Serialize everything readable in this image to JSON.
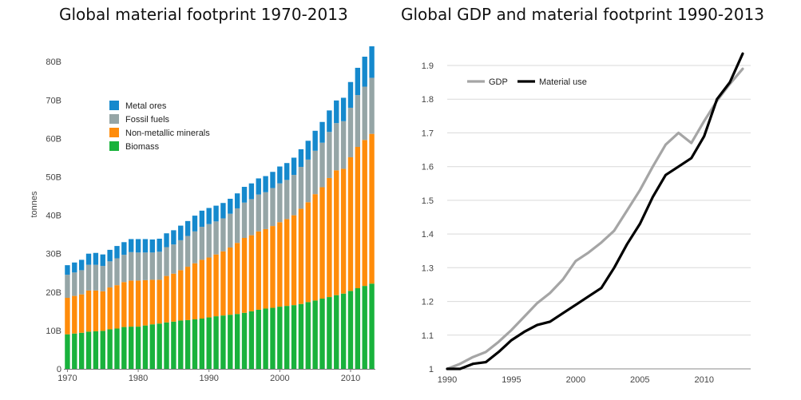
{
  "chart_data": [
    {
      "type": "bar",
      "stacked": true,
      "title": "Global material footprint 1970-2013",
      "ylabel": "tonnes",
      "xlabel": "",
      "ylim": [
        0,
        84
      ],
      "y_ticks": [
        0,
        10,
        20,
        30,
        40,
        50,
        60,
        70,
        80
      ],
      "y_tick_labels": [
        "0",
        "10B",
        "20B",
        "30B",
        "40B",
        "50B",
        "60B",
        "70B",
        "80B"
      ],
      "x_ticks": [
        1970,
        1980,
        1990,
        2000,
        2010
      ],
      "x_tick_labels": [
        "1970",
        "1980",
        "1990",
        "2000",
        "2010"
      ],
      "legend_placement": "top-left",
      "categories": [
        1970,
        1971,
        1972,
        1973,
        1974,
        1975,
        1976,
        1977,
        1978,
        1979,
        1980,
        1981,
        1982,
        1983,
        1984,
        1985,
        1986,
        1987,
        1988,
        1989,
        1990,
        1991,
        1992,
        1993,
        1994,
        1995,
        1996,
        1997,
        1998,
        1999,
        2000,
        2001,
        2002,
        2003,
        2004,
        2005,
        2006,
        2007,
        2008,
        2009,
        2010,
        2011,
        2012,
        2013
      ],
      "series": [
        {
          "name": "Biomass",
          "color": "#19b23c",
          "values": [
            9.0,
            9.2,
            9.4,
            9.7,
            9.8,
            9.9,
            10.3,
            10.5,
            10.9,
            11.0,
            11.0,
            11.3,
            11.6,
            11.8,
            12.1,
            12.3,
            12.6,
            12.7,
            12.9,
            13.1,
            13.4,
            13.7,
            13.9,
            14.1,
            14.3,
            14.6,
            15.0,
            15.4,
            15.7,
            15.9,
            16.2,
            16.4,
            16.6,
            16.9,
            17.4,
            17.8,
            18.3,
            18.7,
            19.2,
            19.6,
            20.3,
            21.0,
            21.6,
            22.2
          ]
        },
        {
          "name": "Non-metallic minerals",
          "color": "#ff8c0a",
          "values": [
            9.5,
            9.8,
            10.0,
            10.7,
            10.6,
            10.3,
            10.9,
            11.3,
            11.7,
            12.0,
            12.0,
            11.8,
            11.6,
            11.4,
            12.1,
            12.5,
            13.1,
            13.9,
            14.6,
            15.3,
            15.6,
            16.1,
            16.7,
            17.5,
            18.5,
            19.5,
            19.8,
            20.4,
            20.7,
            21.3,
            22.0,
            22.6,
            23.4,
            24.8,
            26.0,
            27.7,
            29.0,
            31.0,
            32.5,
            32.5,
            34.8,
            36.8,
            38.0,
            39.0
          ]
        },
        {
          "name": "Fossil fuels",
          "color": "#95a5a6",
          "values": [
            6.0,
            6.1,
            6.3,
            6.7,
            6.7,
            6.6,
            6.8,
            7.0,
            7.1,
            7.4,
            7.3,
            7.2,
            7.1,
            7.3,
            7.5,
            7.6,
            7.8,
            8.0,
            8.3,
            8.6,
            8.7,
            8.6,
            8.6,
            8.8,
            9.0,
            9.2,
            9.4,
            9.6,
            9.6,
            9.9,
            10.1,
            10.2,
            10.5,
            10.9,
            11.1,
            11.3,
            11.6,
            12.0,
            12.3,
            12.4,
            12.9,
            13.5,
            13.9,
            14.6
          ]
        },
        {
          "name": "Metal ores",
          "color": "#1589cd",
          "values": [
            2.5,
            2.6,
            2.7,
            2.9,
            3.1,
            3.0,
            3.0,
            3.2,
            3.3,
            3.4,
            3.5,
            3.5,
            3.4,
            3.4,
            3.6,
            3.7,
            3.8,
            3.9,
            4.1,
            4.2,
            4.2,
            4.1,
            4.0,
            3.9,
            3.9,
            4.1,
            4.1,
            4.2,
            4.2,
            4.2,
            4.4,
            4.4,
            4.5,
            4.6,
            4.9,
            5.2,
            5.4,
            5.6,
            5.9,
            6.1,
            6.7,
            7.1,
            7.8,
            8.2
          ]
        }
      ],
      "legend_order": [
        "Metal ores",
        "Fossil fuels",
        "Non-metallic minerals",
        "Biomass"
      ]
    },
    {
      "type": "line",
      "title": "Global GDP and material footprint 1990-2013",
      "xlabel": "",
      "ylabel": "",
      "xlim": [
        1990,
        2013
      ],
      "ylim": [
        1,
        1.95
      ],
      "y_ticks": [
        1,
        1.1,
        1.2,
        1.3,
        1.4,
        1.5,
        1.6,
        1.7,
        1.8,
        1.9
      ],
      "y_tick_labels": [
        "1",
        "1.1",
        "1.2",
        "1.3",
        "1.4",
        "1.5",
        "1.6",
        "1.7",
        "1.8",
        "1.9"
      ],
      "x_ticks": [
        1990,
        1995,
        2000,
        2005,
        2010
      ],
      "x_tick_labels": [
        "1990",
        "1995",
        "2000",
        "2005",
        "2010"
      ],
      "legend_placement": "top-left",
      "x": [
        1990,
        1991,
        1992,
        1993,
        1994,
        1995,
        1996,
        1997,
        1998,
        1999,
        2000,
        2001,
        2002,
        2003,
        2004,
        2005,
        2006,
        2007,
        2008,
        2009,
        2010,
        2011,
        2012,
        2013
      ],
      "series": [
        {
          "name": "GDP",
          "color": "#a5a5a5",
          "values": [
            1.0,
            1.015,
            1.035,
            1.05,
            1.08,
            1.115,
            1.155,
            1.195,
            1.225,
            1.265,
            1.32,
            1.345,
            1.375,
            1.41,
            1.47,
            1.53,
            1.6,
            1.665,
            1.7,
            1.67,
            1.735,
            1.795,
            1.845,
            1.89
          ]
        },
        {
          "name": "Material use",
          "color": "#000000",
          "values": [
            1.0,
            1.0,
            1.015,
            1.02,
            1.05,
            1.085,
            1.11,
            1.13,
            1.14,
            1.165,
            1.19,
            1.215,
            1.24,
            1.3,
            1.37,
            1.43,
            1.51,
            1.575,
            1.6,
            1.625,
            1.69,
            1.8,
            1.85,
            1.935
          ]
        }
      ]
    }
  ]
}
